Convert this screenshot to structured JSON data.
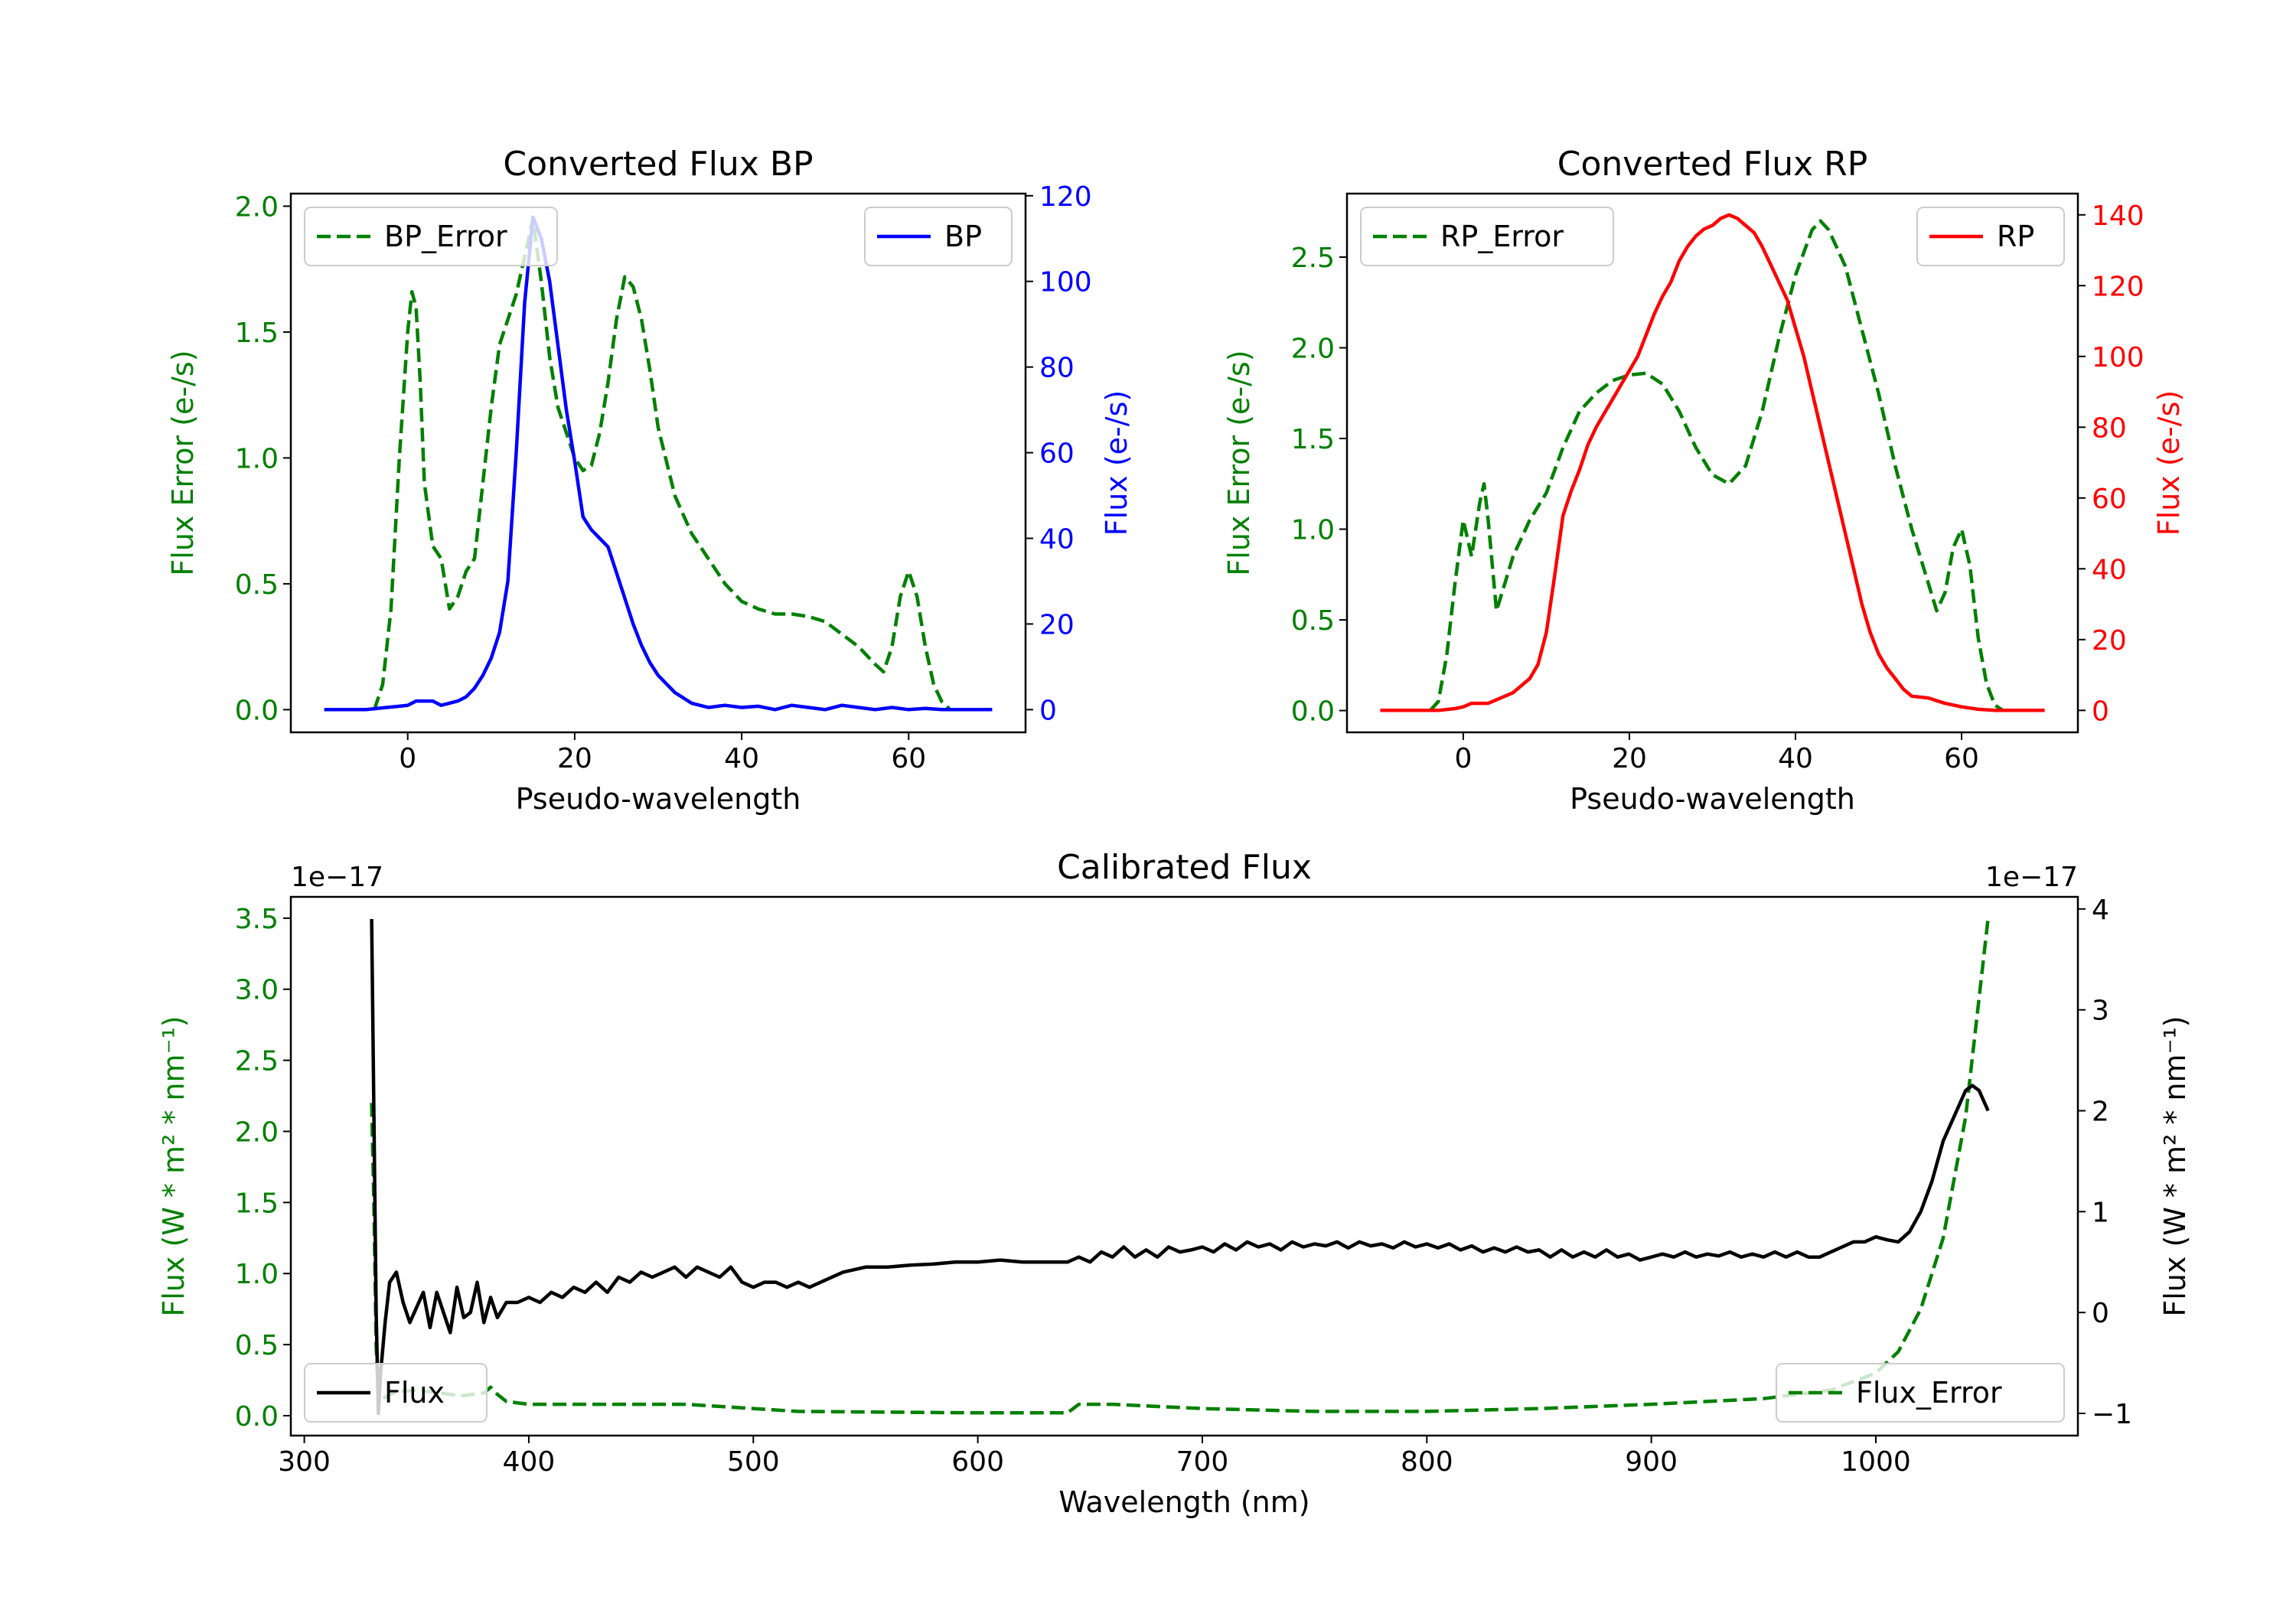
{
  "chart_data": [
    {
      "type": "line",
      "title": "Converted Flux BP",
      "xlabel": "Pseudo-wavelength",
      "ylabel_left": "Flux Error (e-/s)",
      "ylabel_right": "Flux (e-/s)",
      "xlim": [
        -14,
        74
      ],
      "ylim_left": [
        -0.09,
        2.05
      ],
      "ylim_right": [
        -5.3,
        120.5
      ],
      "x_ticks": [
        0,
        20,
        40,
        60
      ],
      "y_ticks_left": [
        0.0,
        0.5,
        1.0,
        1.5,
        2.0
      ],
      "y_ticks_right": [
        0,
        20,
        40,
        60,
        80,
        100,
        120
      ],
      "legend_left": {
        "label": "BP_Error",
        "loc": "upper left"
      },
      "legend_right": {
        "label": "BP",
        "loc": "upper right"
      },
      "series": [
        {
          "name": "BP_Error",
          "axis": "left",
          "color": "#008000",
          "dash": true,
          "x": [
            -4,
            -3,
            -2,
            -1,
            0,
            0.5,
            1,
            1.5,
            2,
            3,
            4,
            5,
            6,
            7,
            8,
            9,
            10,
            11,
            12,
            13,
            14,
            15,
            16,
            17,
            18,
            19,
            20,
            21,
            22,
            23,
            24,
            25,
            26,
            27,
            28,
            29,
            30,
            32,
            34,
            36,
            38,
            40,
            42,
            44,
            46,
            48,
            50,
            52,
            54,
            56,
            57,
            58,
            59,
            60,
            61,
            62,
            63,
            64,
            65
          ],
          "y": [
            0.0,
            0.1,
            0.4,
            1.0,
            1.5,
            1.66,
            1.6,
            1.3,
            0.9,
            0.65,
            0.6,
            0.4,
            0.45,
            0.55,
            0.6,
            0.9,
            1.2,
            1.45,
            1.55,
            1.65,
            1.8,
            1.95,
            1.7,
            1.4,
            1.2,
            1.1,
            1.0,
            0.95,
            0.97,
            1.1,
            1.3,
            1.55,
            1.72,
            1.68,
            1.55,
            1.35,
            1.12,
            0.85,
            0.7,
            0.6,
            0.5,
            0.43,
            0.4,
            0.38,
            0.38,
            0.37,
            0.35,
            0.3,
            0.25,
            0.18,
            0.15,
            0.25,
            0.45,
            0.55,
            0.45,
            0.25,
            0.1,
            0.03,
            0.0
          ]
        },
        {
          "name": "BP",
          "axis": "right",
          "color": "#0000ff",
          "dash": false,
          "x": [
            -10,
            -5,
            0,
            1,
            2,
            3,
            4,
            5,
            6,
            7,
            8,
            9,
            10,
            11,
            12,
            13,
            14,
            15,
            16,
            17,
            18,
            19,
            20,
            21,
            22,
            23,
            24,
            25,
            26,
            27,
            28,
            29,
            30,
            32,
            34,
            36,
            38,
            40,
            42,
            44,
            46,
            48,
            50,
            52,
            54,
            56,
            58,
            60,
            62,
            64,
            66,
            70
          ],
          "y": [
            0,
            0,
            1,
            2,
            2,
            2,
            1,
            1.5,
            2,
            3,
            5,
            8,
            12,
            18,
            30,
            60,
            95,
            115,
            110,
            100,
            85,
            70,
            58,
            45,
            42,
            40,
            38,
            32,
            26,
            20,
            15,
            11,
            8,
            4,
            1.5,
            0.5,
            1,
            0.5,
            0.8,
            0,
            1,
            0.5,
            0,
            1,
            0.5,
            0,
            0.5,
            0,
            0.3,
            0,
            0,
            0
          ]
        }
      ]
    },
    {
      "type": "line",
      "title": "Converted Flux RP",
      "xlabel": "Pseudo-wavelength",
      "ylabel_left": "Flux Error (e-/s)",
      "ylabel_right": "Flux (e-/s)",
      "xlim": [
        -14,
        74
      ],
      "ylim_left": [
        -0.12,
        2.85
      ],
      "ylim_right": [
        -6.2,
        146
      ],
      "x_ticks": [
        0,
        20,
        40,
        60
      ],
      "y_ticks_left": [
        0.0,
        0.5,
        1.0,
        1.5,
        2.0,
        2.5
      ],
      "y_ticks_right": [
        0,
        20,
        40,
        60,
        80,
        100,
        120,
        140
      ],
      "legend_left": {
        "label": "RP_Error",
        "loc": "upper left"
      },
      "legend_right": {
        "label": "RP",
        "loc": "upper right"
      },
      "series": [
        {
          "name": "RP_Error",
          "axis": "left",
          "color": "#008000",
          "dash": true,
          "x": [
            -4,
            -3,
            -2,
            -1,
            0,
            0.5,
            1,
            1.5,
            2,
            2.5,
            3,
            4,
            5,
            6,
            7,
            8,
            10,
            12,
            14,
            16,
            18,
            20,
            22,
            24,
            26,
            28,
            30,
            32,
            34,
            36,
            38,
            40,
            42,
            43,
            44,
            46,
            48,
            50,
            52,
            54,
            56,
            57,
            58,
            59,
            60,
            61,
            62,
            63,
            64,
            65
          ],
          "y": [
            0.0,
            0.05,
            0.3,
            0.7,
            1.05,
            0.95,
            0.85,
            1.0,
            1.15,
            1.25,
            1.05,
            0.55,
            0.7,
            0.85,
            0.95,
            1.05,
            1.2,
            1.45,
            1.65,
            1.75,
            1.82,
            1.85,
            1.86,
            1.8,
            1.65,
            1.45,
            1.3,
            1.25,
            1.35,
            1.65,
            2.05,
            2.4,
            2.65,
            2.7,
            2.65,
            2.45,
            2.1,
            1.75,
            1.35,
            1.0,
            0.7,
            0.55,
            0.65,
            0.9,
            1.0,
            0.8,
            0.4,
            0.15,
            0.03,
            0.0
          ]
        },
        {
          "name": "RP",
          "axis": "right",
          "color": "#ff0000",
          "dash": false,
          "x": [
            -10,
            -3,
            -1,
            0,
            1,
            2,
            3,
            4,
            5,
            6,
            7,
            8,
            9,
            10,
            11,
            12,
            13,
            14,
            15,
            16,
            17,
            18,
            19,
            20,
            21,
            22,
            23,
            24,
            25,
            26,
            27,
            28,
            29,
            30,
            31,
            32,
            33,
            34,
            35,
            36,
            37,
            38,
            39,
            40,
            41,
            42,
            43,
            44,
            45,
            46,
            47,
            48,
            49,
            50,
            51,
            52,
            53,
            54,
            56,
            58,
            60,
            62,
            64,
            70
          ],
          "y": [
            0,
            0,
            0.5,
            1,
            2,
            2,
            2,
            3,
            4,
            5,
            7,
            9,
            13,
            22,
            38,
            55,
            62,
            68,
            75,
            80,
            84,
            88,
            92,
            96,
            100,
            106,
            112,
            117,
            121,
            127,
            131,
            134,
            136,
            137,
            139,
            140,
            139,
            137,
            135,
            131,
            126,
            121,
            116,
            108,
            100,
            90,
            80,
            70,
            60,
            50,
            40,
            30,
            22,
            16,
            12,
            9,
            6,
            4,
            3.5,
            2,
            1,
            0.3,
            0,
            0
          ]
        }
      ]
    },
    {
      "type": "line",
      "title": "Calibrated Flux",
      "xlabel": "Wavelength (nm)",
      "ylabel_left": "Flux (W * m² * nm⁻¹)",
      "ylabel_right": "Flux (W * m² * nm⁻¹)",
      "offset_left": "1e−17",
      "offset_right": "1e−17",
      "xlim": [
        294,
        1090
      ],
      "ylim_left": [
        -0.14,
        3.65
      ],
      "ylim_right": [
        -1.22,
        4.12
      ],
      "x_ticks": [
        300,
        400,
        500,
        600,
        700,
        800,
        900,
        1000
      ],
      "y_ticks_left": [
        0.0,
        0.5,
        1.0,
        1.5,
        2.0,
        2.5,
        3.0,
        3.5
      ],
      "y_ticks_right": [
        -1,
        0,
        1,
        2,
        3,
        4
      ],
      "legend_left": {
        "label": "Flux",
        "loc": "lower left"
      },
      "legend_right": {
        "label": "Flux_Error",
        "loc": "lower right"
      },
      "series": [
        {
          "name": "Flux_Error",
          "axis": "left",
          "color": "#008000",
          "dash": true,
          "x": [
            330,
            331,
            332,
            333,
            335,
            338,
            342,
            350,
            360,
            370,
            380,
            383,
            386,
            390,
            400,
            420,
            450,
            470,
            500,
            520,
            600,
            640,
            645,
            660,
            700,
            750,
            800,
            850,
            900,
            950,
            980,
            1000,
            1010,
            1020,
            1030,
            1040,
            1045,
            1050
          ],
          "y": [
            2.2,
            1.5,
            0.5,
            0.15,
            0.12,
            0.15,
            0.17,
            0.18,
            0.16,
            0.14,
            0.16,
            0.2,
            0.15,
            0.1,
            0.08,
            0.08,
            0.08,
            0.08,
            0.05,
            0.03,
            0.02,
            0.02,
            0.08,
            0.08,
            0.05,
            0.03,
            0.03,
            0.05,
            0.08,
            0.12,
            0.18,
            0.3,
            0.45,
            0.75,
            1.25,
            2.1,
            2.8,
            3.5
          ]
        },
        {
          "name": "Flux",
          "axis": "right",
          "color": "#000000",
          "dash": false,
          "x": [
            330,
            331,
            332,
            333,
            334,
            336,
            338,
            341,
            344,
            347,
            350,
            353,
            356,
            359,
            362,
            365,
            368,
            371,
            374,
            377,
            380,
            383,
            386,
            390,
            395,
            400,
            405,
            410,
            415,
            420,
            425,
            430,
            435,
            440,
            445,
            450,
            455,
            460,
            465,
            470,
            475,
            480,
            485,
            490,
            495,
            500,
            505,
            510,
            515,
            520,
            525,
            530,
            540,
            550,
            560,
            570,
            580,
            590,
            600,
            610,
            620,
            630,
            640,
            645,
            650,
            655,
            660,
            665,
            670,
            675,
            680,
            685,
            690,
            695,
            700,
            705,
            710,
            715,
            720,
            725,
            730,
            735,
            740,
            745,
            750,
            755,
            760,
            765,
            770,
            775,
            780,
            785,
            790,
            795,
            800,
            805,
            810,
            815,
            820,
            825,
            830,
            835,
            840,
            845,
            850,
            855,
            860,
            865,
            870,
            875,
            880,
            885,
            890,
            895,
            900,
            905,
            910,
            915,
            920,
            925,
            930,
            935,
            940,
            945,
            950,
            955,
            960,
            965,
            970,
            975,
            980,
            985,
            990,
            995,
            1000,
            1005,
            1010,
            1015,
            1020,
            1025,
            1030,
            1035,
            1040,
            1043,
            1046,
            1050
          ],
          "y": [
            3.9,
            2.0,
            0.0,
            -1.0,
            -0.6,
            -0.1,
            0.3,
            0.4,
            0.1,
            -0.1,
            0.05,
            0.2,
            -0.15,
            0.2,
            0.0,
            -0.2,
            0.25,
            -0.05,
            0.0,
            0.3,
            -0.1,
            0.15,
            -0.05,
            0.1,
            0.1,
            0.15,
            0.1,
            0.2,
            0.15,
            0.25,
            0.2,
            0.3,
            0.2,
            0.35,
            0.3,
            0.4,
            0.35,
            0.4,
            0.45,
            0.35,
            0.45,
            0.4,
            0.35,
            0.45,
            0.3,
            0.25,
            0.3,
            0.3,
            0.25,
            0.3,
            0.25,
            0.3,
            0.4,
            0.45,
            0.45,
            0.47,
            0.48,
            0.5,
            0.5,
            0.52,
            0.5,
            0.5,
            0.5,
            0.55,
            0.5,
            0.6,
            0.55,
            0.65,
            0.55,
            0.62,
            0.55,
            0.65,
            0.6,
            0.62,
            0.65,
            0.6,
            0.68,
            0.62,
            0.7,
            0.65,
            0.68,
            0.62,
            0.7,
            0.65,
            0.68,
            0.66,
            0.7,
            0.64,
            0.7,
            0.66,
            0.68,
            0.64,
            0.7,
            0.65,
            0.68,
            0.64,
            0.68,
            0.62,
            0.66,
            0.6,
            0.64,
            0.6,
            0.65,
            0.6,
            0.62,
            0.55,
            0.62,
            0.55,
            0.6,
            0.55,
            0.62,
            0.55,
            0.58,
            0.52,
            0.55,
            0.58,
            0.55,
            0.6,
            0.55,
            0.58,
            0.56,
            0.6,
            0.55,
            0.58,
            0.55,
            0.6,
            0.55,
            0.6,
            0.55,
            0.55,
            0.6,
            0.65,
            0.7,
            0.7,
            0.75,
            0.72,
            0.7,
            0.8,
            1.0,
            1.3,
            1.7,
            1.95,
            2.2,
            2.25,
            2.2,
            2.0
          ]
        }
      ]
    }
  ]
}
